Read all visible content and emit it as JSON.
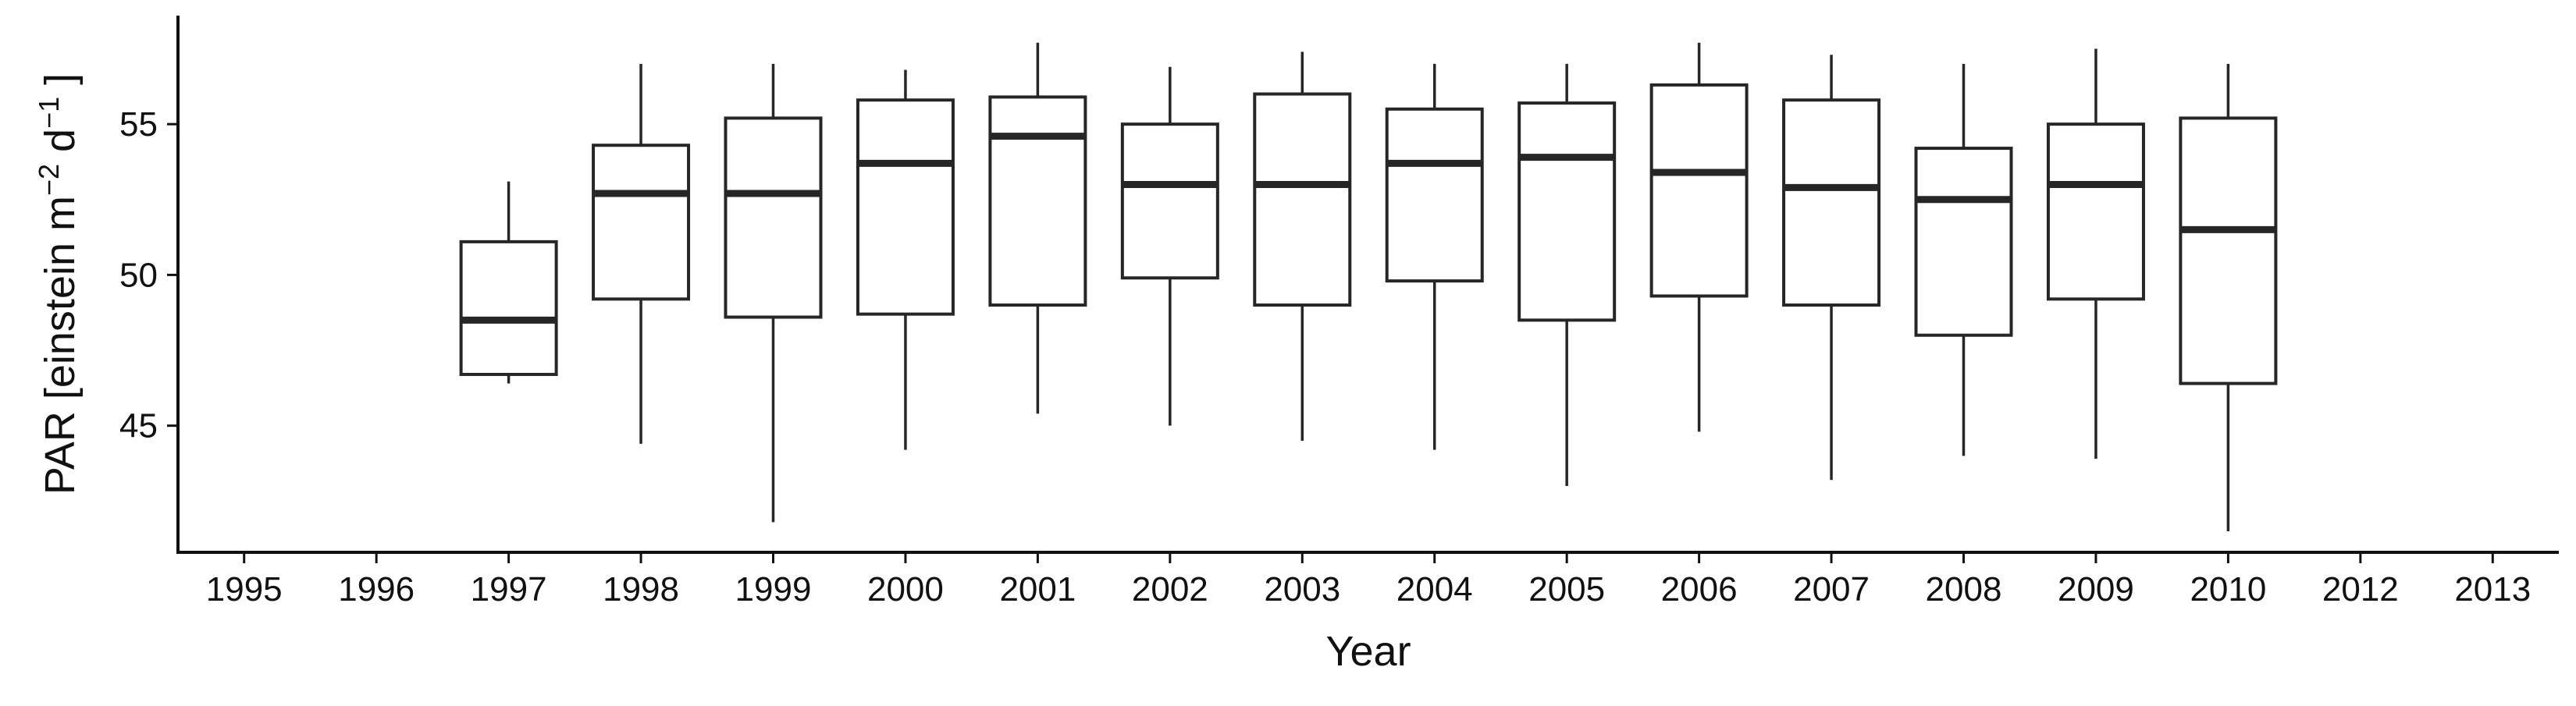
{
  "chart_data": {
    "type": "boxplot",
    "xlabel": "Year",
    "ylabel": {
      "prefix": "PAR [einstein  m",
      "exp1": "−2",
      "mid": "  d",
      "exp2": "−1",
      "suffix": " ]"
    },
    "categories": [
      "1995",
      "1996",
      "1997",
      "1998",
      "1999",
      "2000",
      "2001",
      "2002",
      "2003",
      "2004",
      "2005",
      "2006",
      "2007",
      "2008",
      "2009",
      "2010",
      "2012",
      "2013"
    ],
    "ylim": [
      40.8,
      58.6
    ],
    "yticks": [
      45,
      50,
      55
    ],
    "ytick_labels": [
      "45",
      "50",
      "55"
    ],
    "grid": false,
    "boxes": [
      {
        "category": "1997",
        "min": 46.4,
        "q1": 46.7,
        "median": 48.5,
        "q3": 51.1,
        "max": 53.1
      },
      {
        "category": "1998",
        "min": 44.4,
        "q1": 49.2,
        "median": 52.7,
        "q3": 54.3,
        "max": 57.0
      },
      {
        "category": "1999",
        "min": 41.8,
        "q1": 48.6,
        "median": 52.7,
        "q3": 55.2,
        "max": 57.0
      },
      {
        "category": "2000",
        "min": 44.2,
        "q1": 48.7,
        "median": 53.7,
        "q3": 55.8,
        "max": 56.8
      },
      {
        "category": "2001",
        "min": 45.4,
        "q1": 49.0,
        "median": 54.6,
        "q3": 55.9,
        "max": 57.7
      },
      {
        "category": "2002",
        "min": 45.0,
        "q1": 49.9,
        "median": 53.0,
        "q3": 55.0,
        "max": 56.9
      },
      {
        "category": "2003",
        "min": 44.5,
        "q1": 49.0,
        "median": 53.0,
        "q3": 56.0,
        "max": 57.4
      },
      {
        "category": "2004",
        "min": 44.2,
        "q1": 49.8,
        "median": 53.7,
        "q3": 55.5,
        "max": 57.0
      },
      {
        "category": "2005",
        "min": 43.0,
        "q1": 48.5,
        "median": 53.9,
        "q3": 55.7,
        "max": 57.0
      },
      {
        "category": "2006",
        "min": 44.8,
        "q1": 49.3,
        "median": 53.4,
        "q3": 56.3,
        "max": 57.7
      },
      {
        "category": "2007",
        "min": 43.2,
        "q1": 49.0,
        "median": 52.9,
        "q3": 55.8,
        "max": 57.3
      },
      {
        "category": "2008",
        "min": 44.0,
        "q1": 48.0,
        "median": 52.5,
        "q3": 54.2,
        "max": 57.0
      },
      {
        "category": "2009",
        "min": 43.9,
        "q1": 49.2,
        "median": 53.0,
        "q3": 55.0,
        "max": 57.5
      },
      {
        "category": "2010",
        "min": 41.5,
        "q1": 46.4,
        "median": 51.5,
        "q3": 55.2,
        "max": 57.0
      }
    ],
    "colors": {
      "box_fill": "#ffffff",
      "box_stroke": "#262626",
      "axis": "#111111",
      "text": "#111111"
    }
  }
}
